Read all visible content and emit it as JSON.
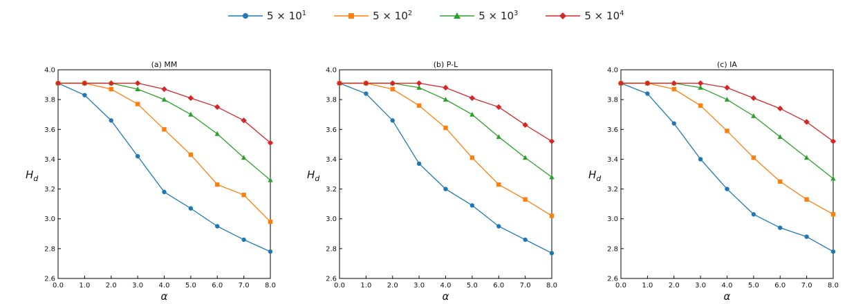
{
  "legend": [
    {
      "base": "5 × 10",
      "exp": "1",
      "color": "#1f77b4",
      "marker": "circle"
    },
    {
      "base": "5 × 10",
      "exp": "2",
      "color": "#ff7f0e",
      "marker": "square"
    },
    {
      "base": "5 × 10",
      "exp": "3",
      "color": "#2ca02c",
      "marker": "triangle"
    },
    {
      "base": "5 × 10",
      "exp": "4",
      "color": "#d62728",
      "marker": "diamond"
    }
  ],
  "chart_data": [
    {
      "type": "line",
      "title": "(a) MM",
      "xlabel": "α",
      "ylabel": "H_d",
      "xlim": [
        0,
        8
      ],
      "ylim": [
        2.6,
        4.0
      ],
      "x": [
        0,
        1,
        2,
        3,
        4,
        5,
        6,
        7,
        8
      ],
      "x_tick_labels": [
        "0.0",
        "1.0",
        "2.0",
        "3.0",
        "4.0",
        "5.0",
        "6.0",
        "7.0",
        "8.0"
      ],
      "y_ticks": [
        2.6,
        2.8,
        3.0,
        3.2,
        3.4,
        3.6,
        3.8,
        4.0
      ],
      "y_tick_labels": [
        "2.6",
        "2.8",
        "3.0",
        "3.2",
        "3.4",
        "3.6",
        "3.8",
        "4.0"
      ],
      "series": [
        {
          "name": "5 × 10^1",
          "values": [
            3.91,
            3.83,
            3.66,
            3.42,
            3.18,
            3.07,
            2.95,
            2.86,
            2.78
          ]
        },
        {
          "name": "5 × 10^2",
          "values": [
            3.91,
            3.91,
            3.87,
            3.77,
            3.6,
            3.43,
            3.23,
            3.16,
            2.98
          ]
        },
        {
          "name": "5 × 10^3",
          "values": [
            3.91,
            3.91,
            3.91,
            3.87,
            3.8,
            3.7,
            3.57,
            3.41,
            3.26
          ]
        },
        {
          "name": "5 × 10^4",
          "values": [
            3.91,
            3.91,
            3.91,
            3.91,
            3.87,
            3.81,
            3.75,
            3.66,
            3.51
          ]
        }
      ]
    },
    {
      "type": "line",
      "title": "(b) P-L",
      "xlabel": "α",
      "ylabel": "H_d",
      "xlim": [
        0,
        8
      ],
      "ylim": [
        2.6,
        4.0
      ],
      "x": [
        0,
        1,
        2,
        3,
        4,
        5,
        6,
        7,
        8
      ],
      "x_tick_labels": [
        "0.0",
        "1.0",
        "2.0",
        "3.0",
        "4.0",
        "5.0",
        "6.0",
        "7.0",
        "8.0"
      ],
      "y_ticks": [
        2.6,
        2.8,
        3.0,
        3.2,
        3.4,
        3.6,
        3.8,
        4.0
      ],
      "y_tick_labels": [
        "2.6",
        "2.8",
        "3.0",
        "3.2",
        "3.4",
        "3.6",
        "3.8",
        "4.0"
      ],
      "series": [
        {
          "name": "5 × 10^1",
          "values": [
            3.91,
            3.84,
            3.66,
            3.37,
            3.2,
            3.09,
            2.95,
            2.86,
            2.77
          ]
        },
        {
          "name": "5 × 10^2",
          "values": [
            3.91,
            3.91,
            3.87,
            3.76,
            3.61,
            3.41,
            3.23,
            3.13,
            3.02
          ]
        },
        {
          "name": "5 × 10^3",
          "values": [
            3.91,
            3.91,
            3.91,
            3.88,
            3.8,
            3.7,
            3.55,
            3.41,
            3.28
          ]
        },
        {
          "name": "5 × 10^4",
          "values": [
            3.91,
            3.91,
            3.91,
            3.91,
            3.88,
            3.81,
            3.75,
            3.63,
            3.52
          ]
        }
      ]
    },
    {
      "type": "line",
      "title": "(c) IA",
      "xlabel": "α",
      "ylabel": "H_d",
      "xlim": [
        0,
        8
      ],
      "ylim": [
        2.6,
        4.0
      ],
      "x": [
        0,
        1,
        2,
        3,
        4,
        5,
        6,
        7,
        8
      ],
      "x_tick_labels": [
        "0.0",
        "1.0",
        "2.0",
        "3.0",
        "4.0",
        "5.0",
        "6.0",
        "7.0",
        "8.0"
      ],
      "y_ticks": [
        2.6,
        2.8,
        3.0,
        3.2,
        3.4,
        3.6,
        3.8,
        4.0
      ],
      "y_tick_labels": [
        "2.6",
        "2.8",
        "3.0",
        "3.2",
        "3.4",
        "3.6",
        "3.8",
        "4.0"
      ],
      "series": [
        {
          "name": "5 × 10^1",
          "values": [
            3.91,
            3.84,
            3.64,
            3.4,
            3.2,
            3.03,
            2.94,
            2.88,
            2.78
          ]
        },
        {
          "name": "5 × 10^2",
          "values": [
            3.91,
            3.91,
            3.87,
            3.76,
            3.59,
            3.41,
            3.25,
            3.13,
            3.03
          ]
        },
        {
          "name": "5 × 10^3",
          "values": [
            3.91,
            3.91,
            3.91,
            3.88,
            3.8,
            3.69,
            3.55,
            3.41,
            3.27
          ]
        },
        {
          "name": "5 × 10^4",
          "values": [
            3.91,
            3.91,
            3.91,
            3.91,
            3.88,
            3.81,
            3.74,
            3.65,
            3.52
          ]
        }
      ]
    }
  ]
}
